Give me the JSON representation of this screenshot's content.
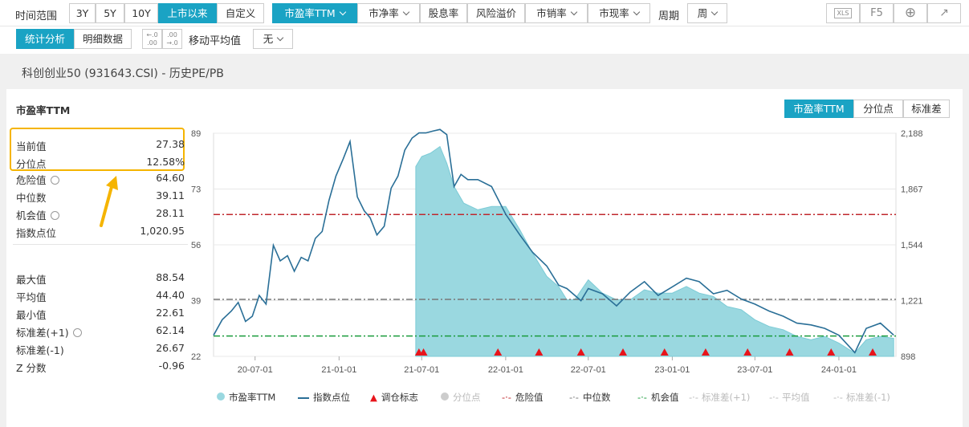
{
  "toolbar": {
    "range_label": "时间范围",
    "ranges": [
      "3Y",
      "5Y",
      "10Y",
      "上市以来",
      "自定义"
    ],
    "metrics": [
      "市盈率TTM",
      "市净率",
      "股息率",
      "风险溢价",
      "市销率",
      "市现率"
    ],
    "period_label": "周期",
    "period_value": "周",
    "f5_label": "F5",
    "xls_label": "XLS",
    "view_tabs": [
      "统计分析",
      "明细数据"
    ],
    "ma_label": "移动平均值",
    "ma_value": "无"
  },
  "page_title": "科创创业50 (931643.CSI) - 历史PE/PB",
  "panel": {
    "title": "市盈率TTM",
    "tabs": [
      "市盈率TTM",
      "分位点",
      "标准差"
    ]
  },
  "stats": [
    {
      "label": "当前值",
      "value": "27.38"
    },
    {
      "label": "分位点",
      "value": "12.58%"
    },
    {
      "label": "危险值",
      "value": "64.60"
    },
    {
      "label": "中位数",
      "value": "39.11"
    },
    {
      "label": "机会值",
      "value": "28.11"
    },
    {
      "label": "指数点位",
      "value": "1,020.95"
    },
    {
      "label": "最大值",
      "value": "88.54"
    },
    {
      "label": "平均值",
      "value": "44.40"
    },
    {
      "label": "最小值",
      "value": "22.61"
    },
    {
      "label": "标准差(+1)",
      "value": "62.14"
    },
    {
      "label": "标准差(-1)",
      "value": "26.67"
    },
    {
      "label": "Z 分数",
      "value": "-0.96"
    }
  ],
  "colors": {
    "accent": "#1aa3c4",
    "pe_fill": "#9ad8e0",
    "index_line": "#2a6f97",
    "danger": "#c0282d",
    "median": "#777777",
    "opportunity": "#1a9b3c",
    "highlight": "#f5b400",
    "marker": "#e8141b"
  },
  "chart_data": {
    "type": "line",
    "left_yticks": [
      "89",
      "73",
      "56",
      "39",
      "22"
    ],
    "right_yticks": [
      "2,188",
      "1,867",
      "1,544",
      "1,221",
      "898"
    ],
    "xticks": [
      "20-07-01",
      "21-01-01",
      "21-07-01",
      "22-01-01",
      "22-07-01",
      "23-01-01",
      "23-07-01",
      "24-01-01"
    ],
    "ylim_left": [
      22,
      89
    ],
    "ylim_right": [
      898,
      2188
    ],
    "reference_lines": [
      {
        "name": "危险值",
        "value": 64.6
      },
      {
        "name": "中位数",
        "value": 39.11
      },
      {
        "name": "机会值",
        "value": 28.11
      }
    ],
    "series": [
      {
        "name": "市盈率TTM",
        "x": [
          "2021-06-18",
          "2021-07-01",
          "2021-07-20",
          "2021-08-10",
          "2021-08-25",
          "2021-09-10",
          "2021-10-01",
          "2021-11-01",
          "2021-12-01",
          "2022-01-01",
          "2022-02-01",
          "2022-03-01",
          "2022-04-01",
          "2022-04-27",
          "2022-05-15",
          "2022-06-01",
          "2022-07-01",
          "2022-08-01",
          "2022-09-01",
          "2022-10-01",
          "2022-11-01",
          "2022-12-01",
          "2023-01-01",
          "2023-02-01",
          "2023-03-01",
          "2023-04-01",
          "2023-05-01",
          "2023-06-01",
          "2023-07-01",
          "2023-08-01",
          "2023-09-01",
          "2023-10-01",
          "2023-11-01",
          "2023-12-01",
          "2024-01-01",
          "2024-02-05",
          "2024-03-01",
          "2024-04-01",
          "2024-04-30"
        ],
        "values": [
          79,
          82,
          83,
          85,
          80,
          73,
          68,
          66,
          67,
          67,
          60,
          53,
          46,
          43,
          39,
          39,
          45,
          41,
          39,
          39,
          42,
          41,
          41,
          43,
          41,
          40,
          37,
          36,
          33,
          31,
          30,
          28,
          27,
          28,
          26,
          23,
          27,
          28,
          27.4
        ]
      },
      {
        "name": "指数点位",
        "x": [
          "2020-04-01",
          "2020-04-20",
          "2020-05-10",
          "2020-05-25",
          "2020-06-10",
          "2020-06-25",
          "2020-07-10",
          "2020-07-25",
          "2020-08-10",
          "2020-08-25",
          "2020-09-10",
          "2020-09-25",
          "2020-10-10",
          "2020-10-25",
          "2020-11-10",
          "2020-11-25",
          "2020-12-10",
          "2020-12-25",
          "2021-01-10",
          "2021-01-25",
          "2021-02-10",
          "2021-02-25",
          "2021-03-10",
          "2021-03-25",
          "2021-04-10",
          "2021-04-25",
          "2021-05-10",
          "2021-05-25",
          "2021-06-10",
          "2021-06-25",
          "2021-07-10",
          "2021-07-25",
          "2021-08-10",
          "2021-08-25",
          "2021-09-10",
          "2021-09-25",
          "2021-10-10",
          "2021-11-01",
          "2021-12-01",
          "2022-01-01",
          "2022-02-01",
          "2022-03-01",
          "2022-04-01",
          "2022-04-27",
          "2022-05-15",
          "2022-06-15",
          "2022-07-01",
          "2022-08-01",
          "2022-09-01",
          "2022-10-01",
          "2022-11-01",
          "2022-12-01",
          "2023-01-01",
          "2023-02-01",
          "2023-03-01",
          "2023-04-01",
          "2023-05-01",
          "2023-06-01",
          "2023-07-01",
          "2023-08-01",
          "2023-09-01",
          "2023-10-01",
          "2023-11-01",
          "2023-12-01",
          "2024-01-01",
          "2024-02-05",
          "2024-03-01",
          "2024-04-01",
          "2024-04-30"
        ],
        "values": [
          1020,
          1110,
          1160,
          1210,
          1100,
          1130,
          1250,
          1200,
          1540,
          1450,
          1480,
          1390,
          1470,
          1450,
          1580,
          1620,
          1800,
          1940,
          2040,
          2140,
          1820,
          1740,
          1700,
          1600,
          1650,
          1870,
          1940,
          2090,
          2160,
          2190,
          2190,
          2200,
          2210,
          2180,
          1880,
          1950,
          1920,
          1920,
          1880,
          1720,
          1600,
          1500,
          1420,
          1310,
          1290,
          1220,
          1290,
          1260,
          1190,
          1270,
          1330,
          1250,
          1300,
          1350,
          1330,
          1260,
          1280,
          1230,
          1200,
          1160,
          1130,
          1090,
          1080,
          1060,
          1020,
          920,
          1060,
          1090,
          1021
        ]
      }
    ],
    "rebalance_markers": [
      "2021-06-25",
      "2021-07-05",
      "2021-12-15",
      "2022-03-15",
      "2022-06-15",
      "2022-09-15",
      "2022-12-15",
      "2023-03-15",
      "2023-06-15",
      "2023-09-15",
      "2023-12-15",
      "2024-03-15"
    ],
    "legend": [
      "市盈率TTM",
      "指数点位",
      "调仓标志",
      "分位点",
      "危险值",
      "中位数",
      "机会值",
      "标准差(+1)",
      "平均值",
      "标准差(-1)"
    ]
  }
}
